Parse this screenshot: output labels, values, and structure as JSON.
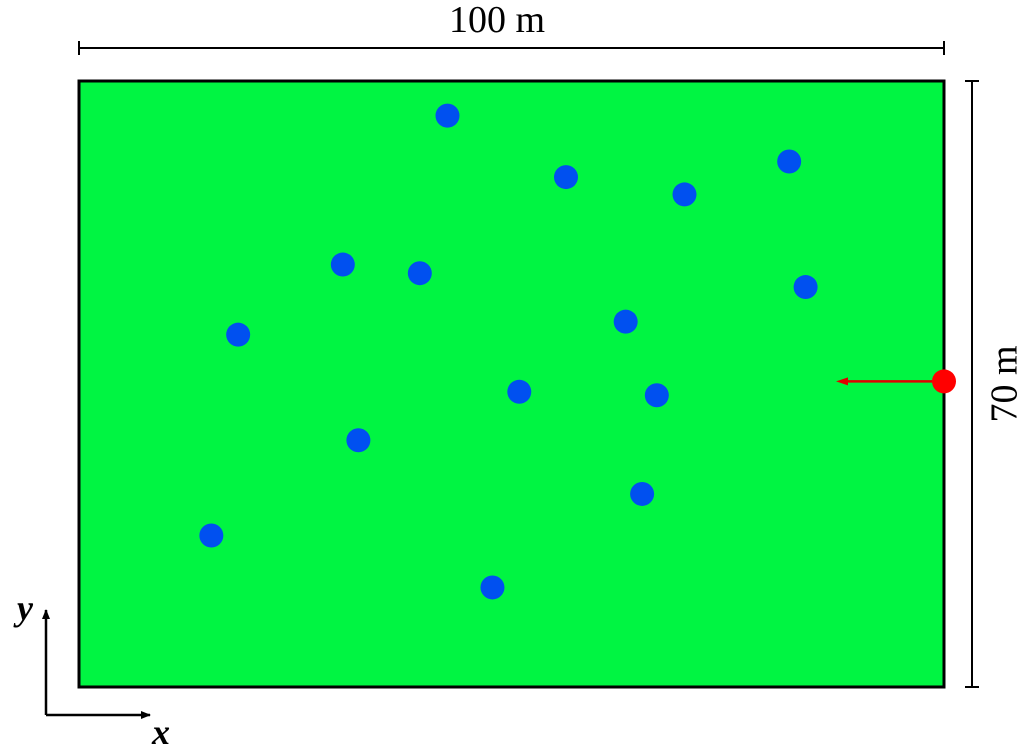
{
  "field": {
    "width_label": "100 m",
    "height_label": "70 m",
    "width_m": 100,
    "height_m": 70,
    "fill_color": "#00f542",
    "border_color": "#000000"
  },
  "axes": {
    "x_label": "x",
    "y_label": "y"
  },
  "blue_points": {
    "color": "#0050f0",
    "points": [
      {
        "x": 42.6,
        "y": 66.0
      },
      {
        "x": 56.3,
        "y": 58.9
      },
      {
        "x": 82.1,
        "y": 60.7
      },
      {
        "x": 70.0,
        "y": 56.9
      },
      {
        "x": 30.5,
        "y": 48.8
      },
      {
        "x": 39.4,
        "y": 47.8
      },
      {
        "x": 18.4,
        "y": 40.7
      },
      {
        "x": 63.2,
        "y": 42.2
      },
      {
        "x": 84.0,
        "y": 46.2
      },
      {
        "x": 50.9,
        "y": 34.1
      },
      {
        "x": 66.8,
        "y": 33.7
      },
      {
        "x": 32.3,
        "y": 28.5
      },
      {
        "x": 65.1,
        "y": 22.3
      },
      {
        "x": 15.3,
        "y": 17.5
      },
      {
        "x": 47.8,
        "y": 11.5
      }
    ]
  },
  "red_point": {
    "color": "#ff0000",
    "x": 100,
    "y": 35.3,
    "arrow_to_x": 87.4
  }
}
